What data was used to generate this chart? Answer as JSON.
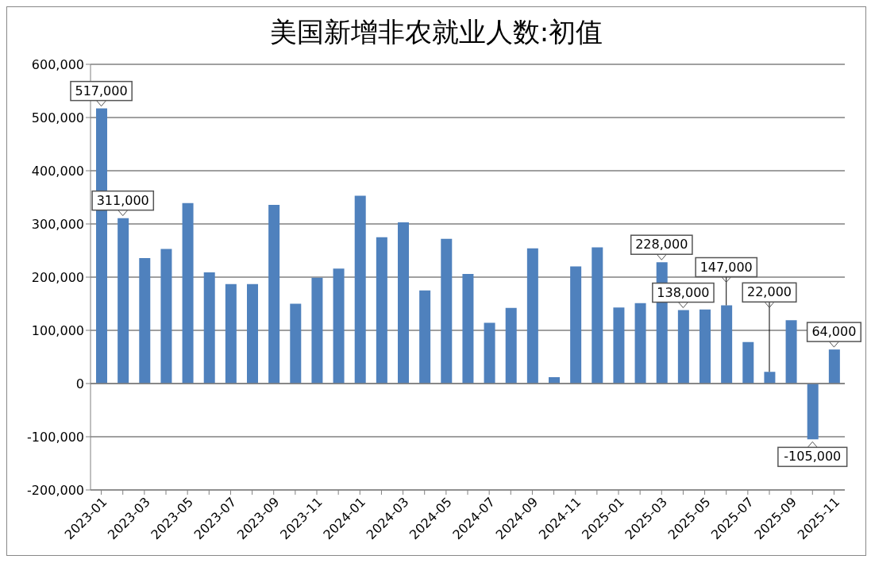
{
  "chart_data": {
    "type": "bar",
    "title": "美国新增非农就业人数:初值",
    "categories": [
      "2023-01",
      null,
      "2023-03",
      null,
      "2023-05",
      null,
      "2023-07",
      null,
      "2023-09",
      null,
      "2023-11",
      null,
      "2024-01",
      null,
      "2024-03",
      null,
      "2024-05",
      null,
      "2024-07",
      null,
      "2024-09",
      null,
      "2024-11",
      null,
      "2025-01",
      null,
      "2025-03",
      null,
      "2025-05",
      null,
      "2025-07",
      null,
      "2025-09",
      null,
      "2025-11"
    ],
    "values": [
      517000,
      311000,
      236000,
      253000,
      339000,
      209000,
      187000,
      187000,
      336000,
      150000,
      199000,
      216000,
      353000,
      275000,
      303000,
      175000,
      272000,
      206000,
      114000,
      142000,
      254000,
      12000,
      220000,
      256000,
      143000,
      151000,
      228000,
      138000,
      139000,
      147000,
      78000,
      22000,
      119000,
      -105000,
      64000
    ],
    "value_labels": [
      "517,000",
      "311,000",
      null,
      null,
      null,
      null,
      null,
      null,
      null,
      null,
      null,
      null,
      null,
      null,
      null,
      null,
      null,
      null,
      null,
      null,
      null,
      null,
      null,
      null,
      null,
      null,
      "228,000",
      "138,000",
      null,
      "147,000",
      null,
      "22,000",
      null,
      "-105,000",
      "64,000"
    ],
    "color": "#4f81bd",
    "ylim": [
      -200000,
      600000
    ],
    "yticks": [
      {
        "value": -200000,
        "label": "-200,000"
      },
      {
        "value": -100000,
        "label": "-100,000"
      },
      0,
      {
        "value": 100000,
        "label": "100,000"
      },
      {
        "value": 200000,
        "label": "200,000"
      },
      {
        "value": 300000,
        "label": "300,000"
      },
      {
        "value": 400000,
        "label": "400,000"
      },
      {
        "value": 500000,
        "label": "500,000"
      },
      {
        "value": 600000,
        "label": "600,000"
      }
    ],
    "grid": "y"
  }
}
